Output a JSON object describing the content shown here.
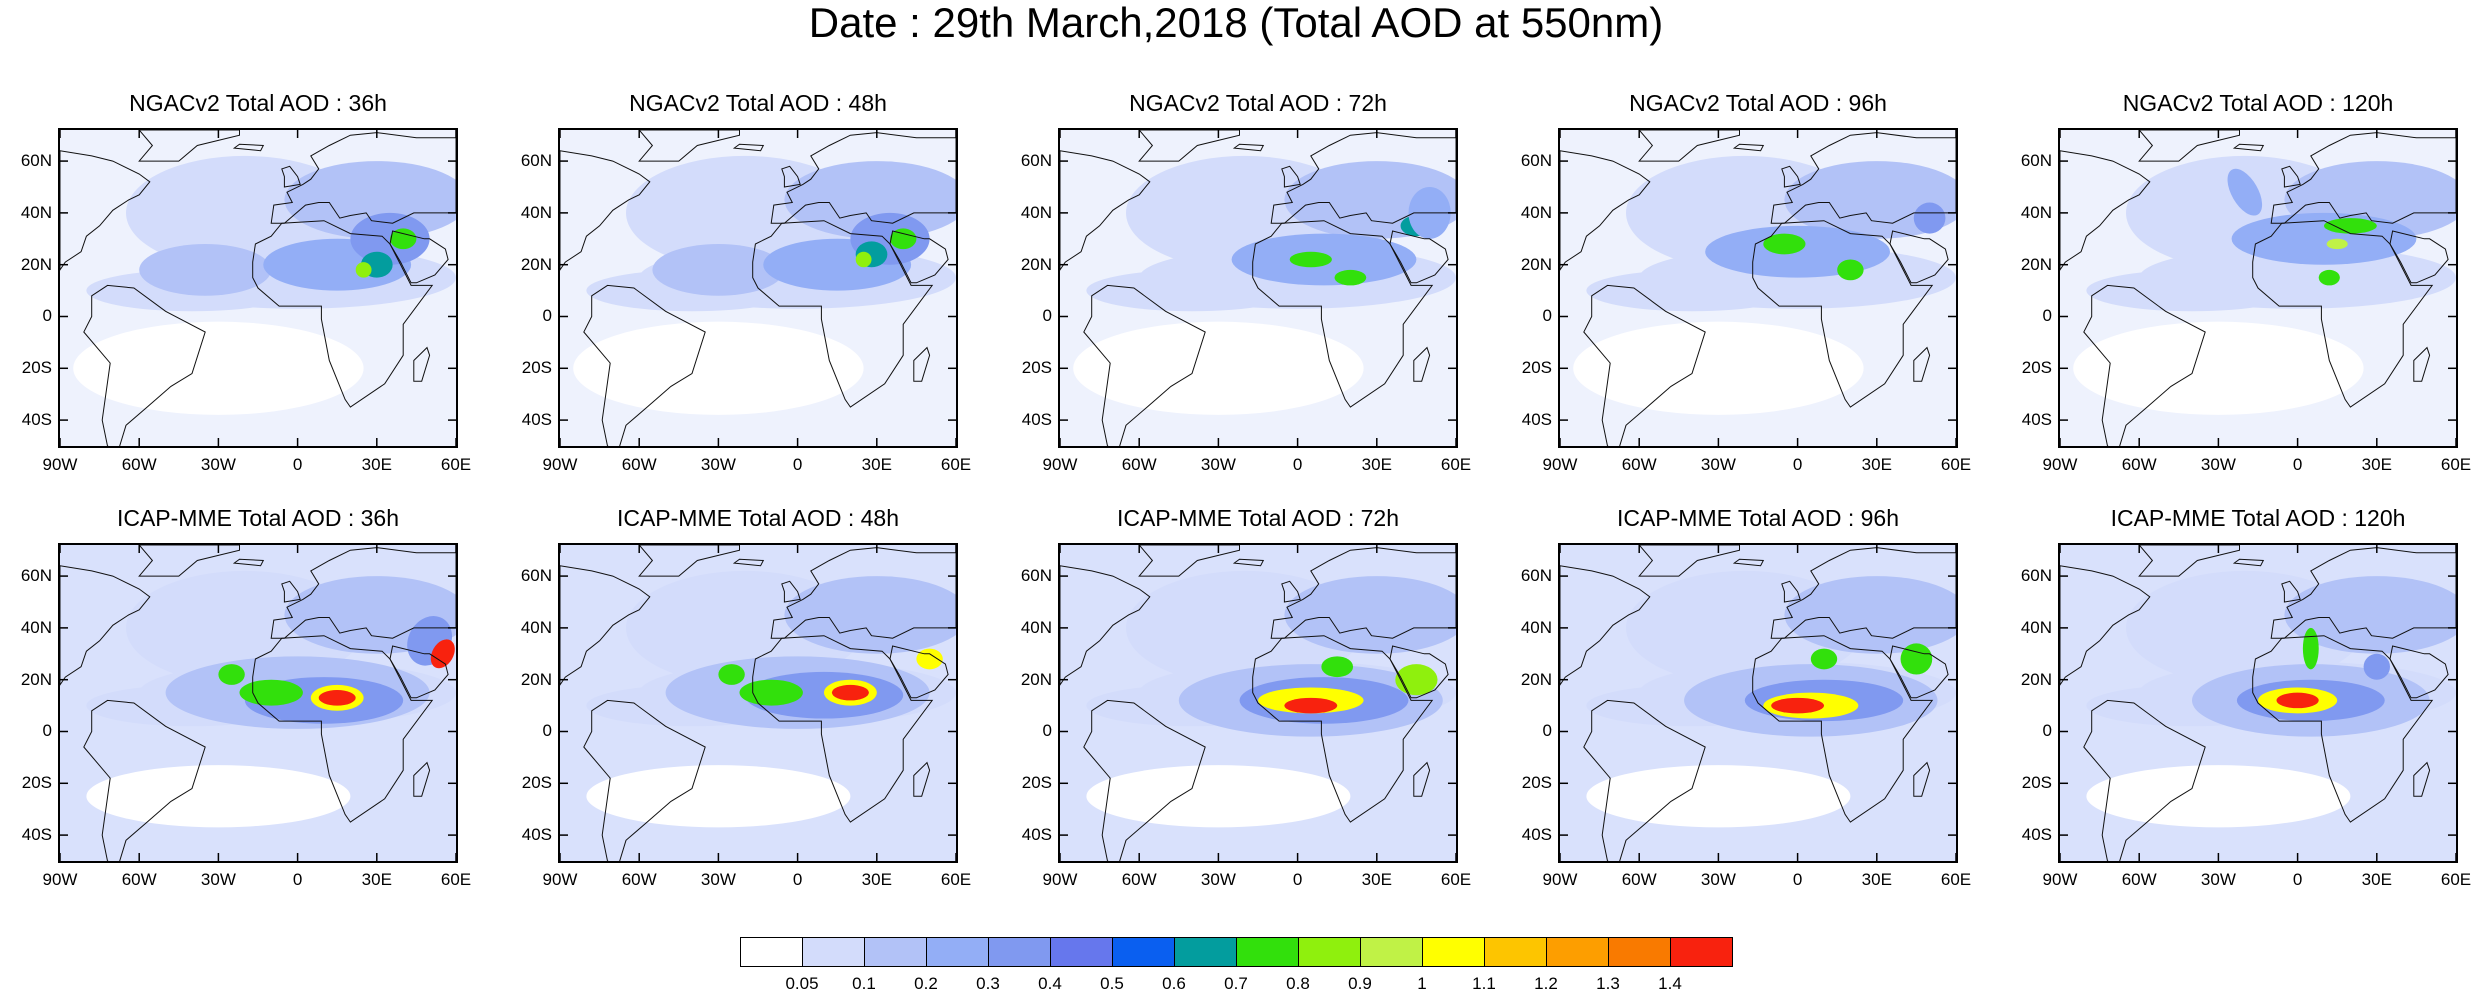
{
  "title": "Date : 29th March,2018 (Total AOD at 550nm)",
  "lat_ticks": [
    "60N",
    "40N",
    "20N",
    "0",
    "20S",
    "40S"
  ],
  "lon_ticks": [
    "90W",
    "60W",
    "30W",
    "0",
    "30E",
    "60E"
  ],
  "extent": {
    "lon": [
      -90,
      60
    ],
    "lat": [
      -50,
      72
    ]
  },
  "lat_values": [
    60,
    40,
    20,
    0,
    -20,
    -40
  ],
  "lon_values": [
    -90,
    -60,
    -30,
    0,
    30,
    60
  ],
  "panels": [
    {
      "title": "NGACv2 Total AOD : 36h",
      "model": "NGACv2",
      "hour": 36
    },
    {
      "title": "NGACv2 Total AOD : 48h",
      "model": "NGACv2",
      "hour": 48
    },
    {
      "title": "NGACv2 Total AOD : 72h",
      "model": "NGACv2",
      "hour": 72
    },
    {
      "title": "NGACv2 Total AOD : 96h",
      "model": "NGACv2",
      "hour": 96
    },
    {
      "title": "NGACv2 Total AOD : 120h",
      "model": "NGACv2",
      "hour": 120
    },
    {
      "title": "ICAP-MME Total AOD : 36h",
      "model": "ICAP-MME",
      "hour": 36
    },
    {
      "title": "ICAP-MME Total AOD : 48h",
      "model": "ICAP-MME",
      "hour": 48
    },
    {
      "title": "ICAP-MME Total AOD : 72h",
      "model": "ICAP-MME",
      "hour": 72
    },
    {
      "title": "ICAP-MME Total AOD : 96h",
      "model": "ICAP-MME",
      "hour": 96
    },
    {
      "title": "ICAP-MME Total AOD : 120h",
      "model": "ICAP-MME",
      "hour": 120
    }
  ],
  "colorbar": {
    "labels": [
      "0.05",
      "0.1",
      "0.2",
      "0.3",
      "0.4",
      "0.5",
      "0.6",
      "0.7",
      "0.8",
      "0.9",
      "1",
      "1.1",
      "1.2",
      "1.3",
      "1.4"
    ],
    "colors": [
      "#ffffff",
      "#d3dcfb",
      "#b2c2f7",
      "#93aef6",
      "#8099f0",
      "#6677ed",
      "#0a5ff0",
      "#039d9e",
      "#32e00c",
      "#8ff00d",
      "#c0f246",
      "#ffff00",
      "#fdc500",
      "#fd9e00",
      "#f97a00",
      "#f8220e"
    ]
  }
}
